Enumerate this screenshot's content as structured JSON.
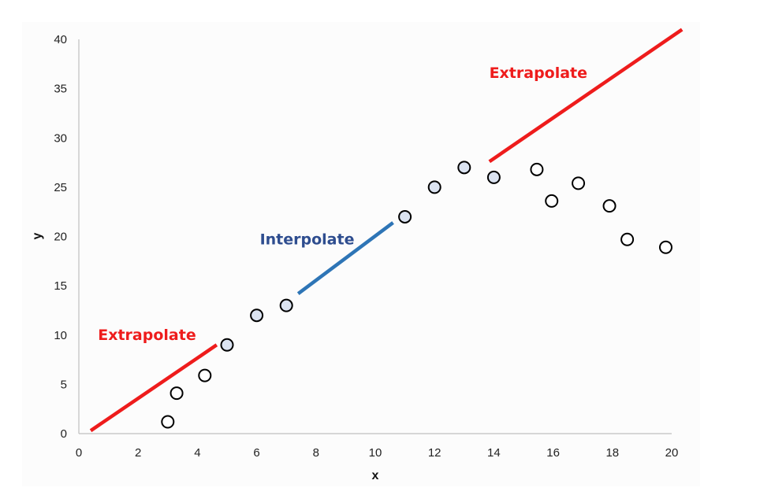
{
  "chart_data": {
    "type": "scatter",
    "title": "",
    "xlabel": "x",
    "ylabel": "y",
    "xlim": [
      0,
      20
    ],
    "ylim": [
      0,
      40
    ],
    "xticks": [
      0,
      2,
      4,
      6,
      8,
      10,
      12,
      14,
      16,
      18,
      20
    ],
    "yticks": [
      0,
      5,
      10,
      15,
      20,
      25,
      30,
      35,
      40
    ],
    "grid": false,
    "legend": "none",
    "series": [
      {
        "role": "filled",
        "color": "#dbe3f1",
        "points": [
          {
            "x": 5,
            "y": 9
          },
          {
            "x": 6,
            "y": 12
          },
          {
            "x": 7,
            "y": 13
          },
          {
            "x": 11,
            "y": 22
          },
          {
            "x": 12,
            "y": 25
          },
          {
            "x": 13,
            "y": 27
          },
          {
            "x": 14,
            "y": 26
          }
        ]
      },
      {
        "role": "open",
        "color": "#ffffff",
        "points": [
          {
            "x": 3,
            "y": 1.2
          },
          {
            "x": 3.3,
            "y": 4.1
          },
          {
            "x": 4.25,
            "y": 5.9
          },
          {
            "x": 15.45,
            "y": 26.8
          },
          {
            "x": 15.95,
            "y": 23.6
          },
          {
            "x": 16.85,
            "y": 25.4
          },
          {
            "x": 17.9,
            "y": 23.1
          },
          {
            "x": 18.5,
            "y": 19.7
          },
          {
            "x": 19.8,
            "y": 18.9
          }
        ]
      }
    ],
    "lines": [
      {
        "color": "#ee1c1c",
        "from": {
          "x": 0.4,
          "y": 0.3
        },
        "to": {
          "x": 4.65,
          "y": 9
        }
      },
      {
        "color": "#2e75b6",
        "from": {
          "x": 7.4,
          "y": 14.2
        },
        "to": {
          "x": 10.6,
          "y": 21.4
        }
      },
      {
        "color": "#ee1c1c",
        "from": {
          "x": 13.85,
          "y": 27.6
        },
        "to": {
          "x": 20.35,
          "y": 41
        }
      }
    ],
    "annotations": [
      {
        "text": "Extrapolate",
        "color": "#ee1c1c",
        "x": 2.3,
        "y": 9.5
      },
      {
        "text": "Interpolate",
        "color": "#2e4d8f",
        "x": 7.7,
        "y": 19.2
      },
      {
        "text": "Extrapolate",
        "color": "#ee1c1c",
        "x": 15.5,
        "y": 36.1
      }
    ]
  }
}
